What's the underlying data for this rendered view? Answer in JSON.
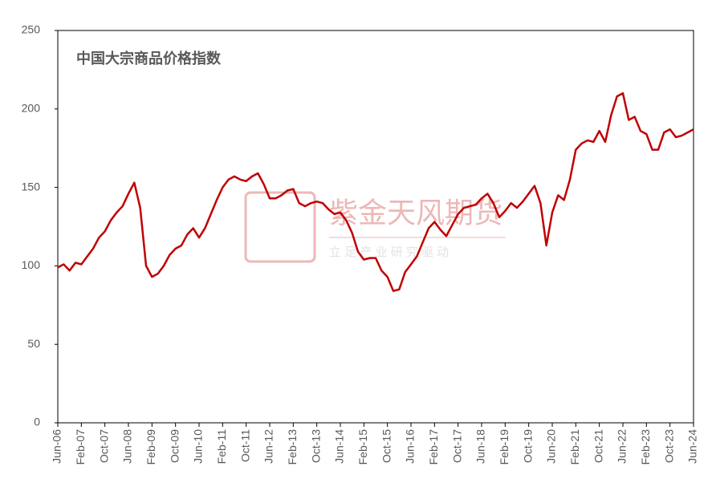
{
  "chart_data": {
    "type": "line",
    "title": "中国大宗商品价格指数",
    "watermark": {
      "brand": "紫金天风期货",
      "slogan": "立 足 产 业  研 究 驱 动"
    },
    "categories": [
      "Jun-06",
      null,
      null,
      null,
      "Feb-07",
      null,
      null,
      null,
      "Oct-07",
      null,
      null,
      null,
      "Jun-08",
      null,
      null,
      null,
      "Feb-09",
      null,
      null,
      null,
      "Oct-09",
      null,
      null,
      null,
      "Jun-10",
      null,
      null,
      null,
      "Feb-11",
      null,
      null,
      null,
      "Oct-11",
      null,
      null,
      null,
      "Jun-12",
      null,
      null,
      null,
      "Feb-13",
      null,
      null,
      null,
      "Oct-13",
      null,
      null,
      null,
      "Jun-14",
      null,
      null,
      null,
      "Feb-15",
      null,
      null,
      null,
      "Oct-15",
      null,
      null,
      null,
      "Jun-16",
      null,
      null,
      null,
      "Feb-17",
      null,
      null,
      null,
      "Oct-17",
      null,
      null,
      null,
      "Jun-18",
      null,
      null,
      null,
      "Feb-19",
      null,
      null,
      null,
      "Oct-19",
      null,
      null,
      null,
      "Jun-20",
      null,
      null,
      null,
      "Feb-21",
      null,
      null,
      null,
      "Oct-21",
      null,
      null,
      null,
      "Jun-22",
      null,
      null,
      null,
      "Feb-23",
      null,
      null,
      null,
      "Oct-23",
      null,
      null,
      null,
      "Jun-24"
    ],
    "series": [
      {
        "color": "#c00000",
        "values": [
          99,
          101,
          97,
          102,
          101,
          106,
          111,
          118,
          122,
          129,
          134,
          138,
          146,
          153,
          137,
          100,
          93,
          95,
          100,
          107,
          111,
          113,
          120,
          124,
          118,
          124,
          133,
          142,
          150,
          155,
          157,
          155,
          154,
          157,
          159,
          152,
          143,
          143,
          145,
          148,
          149,
          140,
          138,
          140,
          141,
          140,
          136,
          133,
          134,
          129,
          121,
          109,
          104,
          105,
          105,
          97,
          93,
          84,
          85,
          96,
          101,
          106,
          115,
          124,
          128,
          123,
          119,
          126,
          133,
          137,
          138,
          139,
          143,
          146,
          140,
          131,
          135,
          140,
          137,
          141,
          146,
          151,
          140,
          113,
          134,
          145,
          142,
          155,
          174,
          178,
          180,
          179,
          186,
          179,
          196,
          208,
          210,
          193,
          195,
          186,
          184,
          174,
          174,
          185,
          187,
          182,
          183,
          185,
          187
        ]
      }
    ],
    "ylim": [
      0,
      250
    ],
    "yticks": [
      0,
      50,
      100,
      150,
      200,
      250
    ]
  }
}
